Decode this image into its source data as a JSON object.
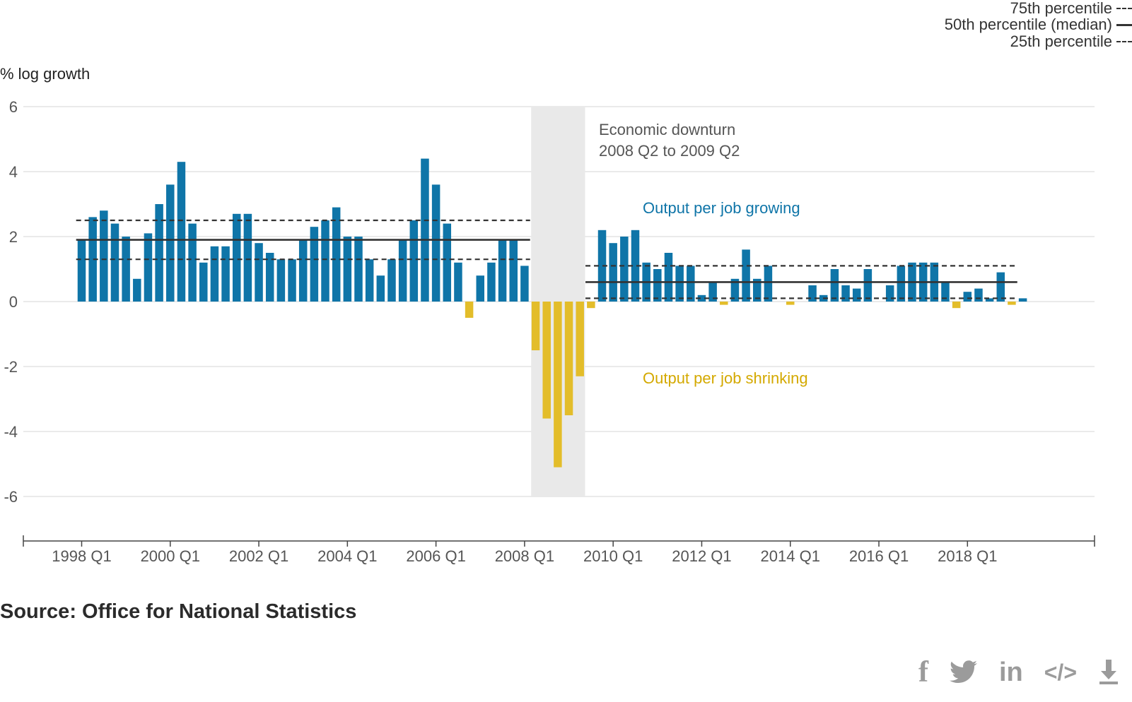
{
  "legend": {
    "p75": "75th percentile",
    "p50": "50th percentile (median)",
    "p25": "25th percentile"
  },
  "source": "Source: Office for National Statistics",
  "share_icons": [
    "facebook-icon",
    "twitter-icon",
    "linkedin-icon",
    "embed-icon",
    "download-icon"
  ],
  "colors": {
    "positive": "#0f75a8",
    "negative": "#e3bd2a",
    "downturn_band": "#e9e9e9",
    "percentile_line": "#333333"
  },
  "chart_data": {
    "type": "bar",
    "ylabel": "% log growth",
    "ylim": [
      -7.2,
      6
    ],
    "y_ticks": [
      6,
      4,
      2,
      0,
      -2,
      -4,
      -6
    ],
    "x_tick_labels": [
      "1998 Q1",
      "2000 Q1",
      "2002 Q1",
      "2004 Q1",
      "2006 Q1",
      "2008 Q1",
      "2010 Q1",
      "2012 Q1",
      "2014 Q1",
      "2016 Q1",
      "2018 Q1"
    ],
    "start_period": "1998 Q1",
    "values": [
      1.9,
      2.6,
      2.8,
      2.4,
      2.0,
      0.7,
      2.1,
      3.0,
      3.6,
      4.3,
      2.4,
      1.2,
      1.7,
      1.7,
      2.7,
      2.7,
      1.8,
      1.5,
      1.3,
      1.3,
      1.9,
      2.3,
      2.5,
      2.9,
      2.0,
      2.0,
      1.3,
      0.8,
      1.3,
      1.9,
      2.5,
      4.4,
      3.6,
      2.4,
      1.2,
      -0.5,
      0.8,
      1.2,
      1.9,
      1.9,
      1.1,
      -1.5,
      -3.6,
      -5.1,
      -3.5,
      -2.3,
      -0.2,
      2.2,
      1.8,
      2.0,
      2.2,
      1.2,
      1.0,
      1.5,
      1.1,
      1.1,
      0.2,
      0.6,
      -0.1,
      0.7,
      1.6,
      0.7,
      1.1,
      0.0,
      -0.1,
      0.0,
      0.5,
      0.2,
      1.0,
      0.5,
      0.4,
      1.0,
      0.0,
      0.5,
      1.1,
      1.2,
      1.2,
      1.2,
      0.6,
      -0.2,
      0.3,
      0.4,
      0.1,
      0.9,
      -0.1,
      0.1
    ],
    "downturn": {
      "start": "2008 Q2",
      "end": "2009 Q2",
      "label_line1": "Economic downturn",
      "label_line2": "2008 Q2 to 2009 Q2"
    },
    "percentiles": [
      {
        "period": "1998 Q1 to 2008 Q1",
        "p25": 1.3,
        "p50": 1.9,
        "p75": 2.5
      },
      {
        "period": "2009 Q3 to 2019 Q1",
        "p25": 0.1,
        "p50": 0.6,
        "p75": 1.1
      }
    ],
    "annotations": {
      "growing": "Output per job growing",
      "shrinking": "Output per job shrinking"
    }
  }
}
